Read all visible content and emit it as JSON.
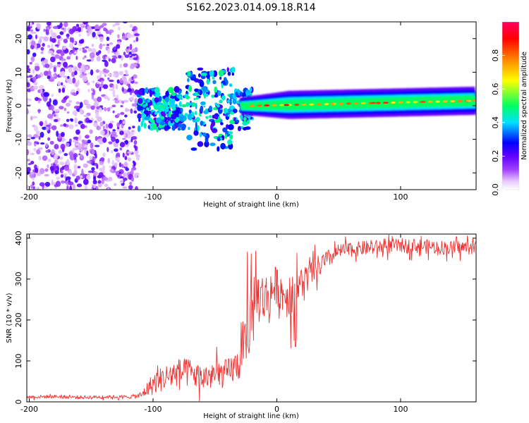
{
  "figure_title": "S162.2023.014.09.18.R14",
  "chart_data": [
    {
      "type": "heatmap",
      "title": "S162.2023.014.09.18.R14",
      "xlabel": "Height of straight line (km)",
      "ylabel": "Frequency (Hz)",
      "xlim": [
        -202,
        161
      ],
      "ylim": [
        -25,
        25
      ],
      "xticks": [
        -200,
        -100,
        0,
        100
      ],
      "yticks": [
        -20,
        -10,
        0,
        10,
        20
      ],
      "colorbar": {
        "label": "Normalized spectral amplitude",
        "range": [
          0,
          1
        ],
        "ticks": [
          "0.0",
          "0.2",
          "0.4",
          "0.6",
          "0.8"
        ],
        "colors": [
          "#ffffff",
          "#e8c8ff",
          "#a040ff",
          "#6000ff",
          "#0000ff",
          "#00e0ff",
          "#00ff60",
          "#ffff00",
          "#ff8000",
          "#ff0000",
          "#ff0060"
        ]
      },
      "features": [
        {
          "region": "noise",
          "x_range": [
            -202,
            -112
          ],
          "y_range": [
            -25,
            25
          ],
          "amplitude": [
            0.05,
            0.25
          ]
        },
        {
          "region": "scattered",
          "x_range": [
            -112,
            -20
          ],
          "y_range": [
            -16,
            12
          ],
          "amplitude": [
            0.2,
            0.5
          ]
        },
        {
          "region": "signal_band",
          "x_range": [
            -20,
            161
          ],
          "center_hz": [
            0,
            1.5
          ],
          "amplitude": [
            0.5,
            0.95
          ]
        }
      ]
    },
    {
      "type": "line",
      "xlabel": "Height of straight line (km)",
      "ylabel": "SNR (10 * v/v)",
      "xlim": [
        -202,
        161
      ],
      "ylim": [
        0,
        410
      ],
      "xticks": [
        -200,
        -100,
        0,
        100
      ],
      "yticks": [
        0,
        100,
        200,
        300,
        400
      ],
      "series": [
        {
          "name": "SNR",
          "color": "#ee3333",
          "x": [
            -200,
            -180,
            -160,
            -140,
            -120,
            -110,
            -100,
            -90,
            -80,
            -70,
            -60,
            -50,
            -40,
            -30,
            -25,
            -20,
            -15,
            -10,
            -5,
            0,
            5,
            10,
            15,
            20,
            30,
            40,
            50,
            60,
            80,
            100,
            120,
            140,
            160
          ],
          "y": [
            12,
            13,
            11,
            12,
            12,
            15,
            45,
            60,
            72,
            70,
            58,
            65,
            70,
            95,
            140,
            210,
            260,
            250,
            270,
            285,
            265,
            250,
            270,
            290,
            320,
            345,
            368,
            372,
            378,
            382,
            380,
            376,
            378
          ],
          "spread": [
            6,
            6,
            6,
            6,
            6,
            10,
            40,
            45,
            50,
            50,
            45,
            50,
            50,
            60,
            90,
            120,
            100,
            90,
            80,
            70,
            70,
            70,
            70,
            60,
            45,
            35,
            25,
            25,
            25,
            25,
            25,
            25,
            25
          ]
        }
      ]
    }
  ]
}
